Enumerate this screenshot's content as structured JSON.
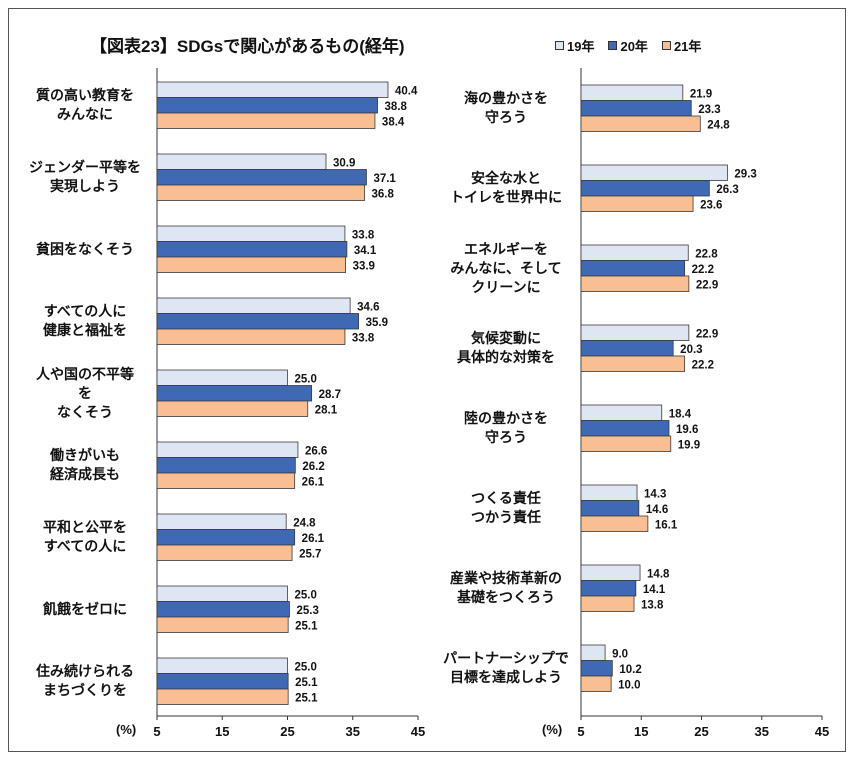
{
  "title": "【図表23】SDGsで関心があるもの(経年)",
  "colors": {
    "s19": "#dde6f2",
    "s20": "#3f68b5",
    "s21": "#f9bf93",
    "axis": "#333333"
  },
  "chart_data": {
    "type": "bar",
    "orientation": "horizontal",
    "title": "【図表23】SDGsで関心があるもの(経年)",
    "unit_label": "(%)",
    "xlim": [
      5,
      45
    ],
    "x_ticks": [
      5,
      15,
      25,
      35,
      45
    ],
    "legend_position": "top-right",
    "series_names": [
      "19年",
      "20年",
      "21年"
    ],
    "panels": [
      {
        "categories": [
          "質の高い教育を\nみんなに",
          "ジェンダー平等を\n実現しよう",
          "貧困をなくそう",
          "すべての人に\n健康と福祉を",
          "人や国の不平等\nを\nなくそう",
          "働きがいも\n経済成長も",
          "平和と公平を\nすべての人に",
          "飢餓をゼロに",
          "住み続けられる\nまちづくりを"
        ],
        "series": [
          {
            "name": "19年",
            "values": [
              40.4,
              30.9,
              33.8,
              34.6,
              25.0,
              26.6,
              24.8,
              25.0,
              25.0
            ]
          },
          {
            "name": "20年",
            "values": [
              38.8,
              37.1,
              34.1,
              35.9,
              28.7,
              26.2,
              26.1,
              25.3,
              25.1
            ]
          },
          {
            "name": "21年",
            "values": [
              38.4,
              36.8,
              33.9,
              33.8,
              28.1,
              26.1,
              25.7,
              25.1,
              25.1
            ]
          }
        ]
      },
      {
        "categories": [
          "海の豊かさを\n守ろう",
          "安全な水と\nトイレを世界中に",
          "エネルギーを\nみんなに、そして\nクリーンに",
          "気候変動に\n具体的な対策を",
          "陸の豊かさを\n守ろう",
          "つくる責任\nつかう責任",
          "産業や技術革新の\n基礎をつくろう",
          "パートナーシップで\n目標を達成しよう"
        ],
        "series": [
          {
            "name": "19年",
            "values": [
              21.9,
              29.3,
              22.8,
              22.9,
              18.4,
              14.3,
              14.8,
              9.0
            ]
          },
          {
            "name": "20年",
            "values": [
              23.3,
              26.3,
              22.2,
              20.3,
              19.6,
              14.6,
              14.1,
              10.2
            ]
          },
          {
            "name": "21年",
            "values": [
              24.8,
              23.6,
              22.9,
              22.2,
              19.9,
              16.1,
              13.8,
              10.0
            ]
          }
        ]
      }
    ]
  }
}
